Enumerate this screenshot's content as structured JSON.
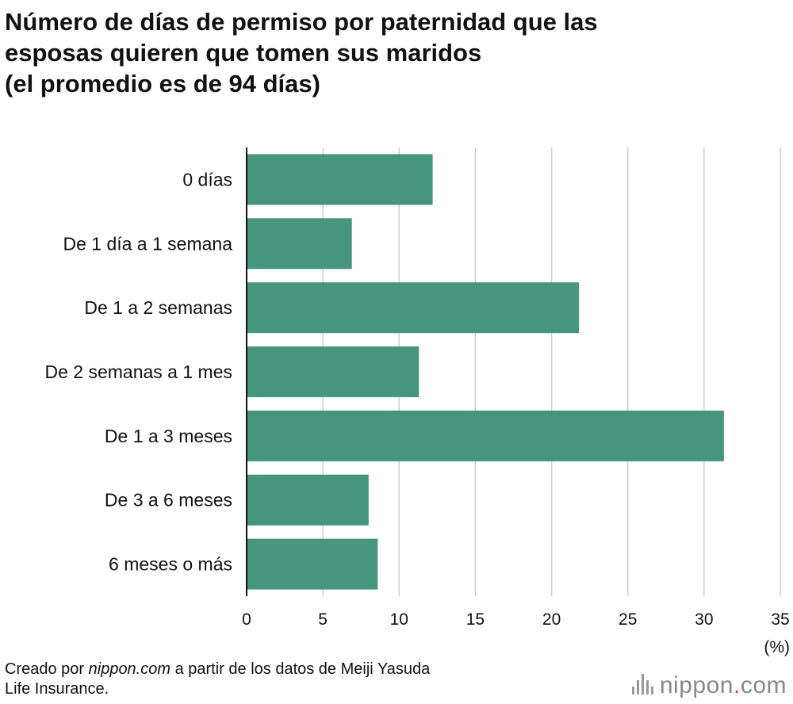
{
  "title": {
    "line1": "Número de días de permiso por paternidad que las",
    "line2": "esposas quieren que tomen sus maridos",
    "line3": "(el promedio es de 94 días)"
  },
  "chart_data": {
    "type": "bar",
    "orientation": "horizontal",
    "categories": [
      "0 días",
      "De 1 día a 1 semana",
      "De 1 a 2 semanas",
      "De 2 semanas a 1 mes",
      "De 1 a 3 meses",
      "De 3 a 6 meses",
      "6 meses o más"
    ],
    "values": [
      12.2,
      6.9,
      21.8,
      11.3,
      31.3,
      8.0,
      8.6
    ],
    "xlim": [
      0,
      35
    ],
    "xticks": [
      0,
      5,
      10,
      15,
      20,
      25,
      30,
      35
    ],
    "unit_label": "(%)",
    "bar_color": "#46957f",
    "grid": true
  },
  "footer": {
    "prefix": "Creado por ",
    "site": "nippon.com",
    "suffix": " a partir de los datos de Meiji Yasuda",
    "line2": "Life Insurance."
  },
  "logo": {
    "name": "nippon",
    "dot": ".",
    "tld": "com"
  }
}
